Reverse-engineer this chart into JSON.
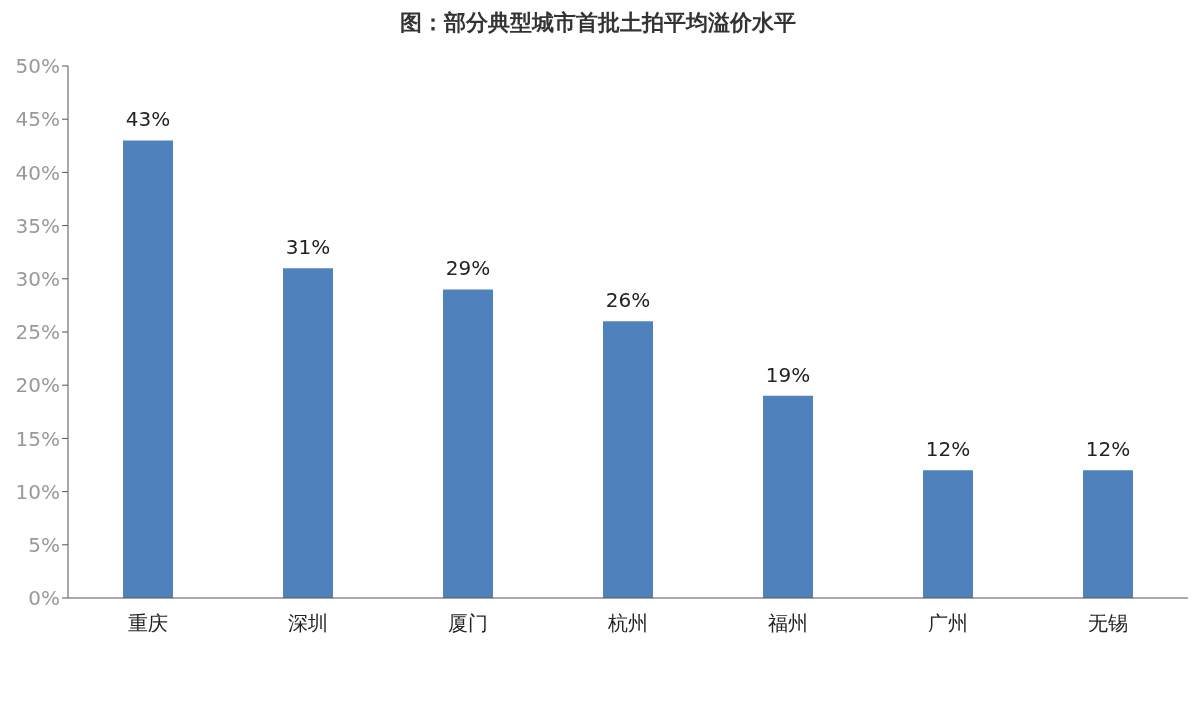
{
  "chart_data": {
    "type": "bar",
    "title": "图：部分典型城市首批土拍平均溢价水平",
    "categories": [
      "重庆",
      "深圳",
      "厦门",
      "杭州",
      "福州",
      "广州",
      "无锡"
    ],
    "values": [
      43,
      31,
      29,
      26,
      19,
      12,
      12
    ],
    "value_labels": [
      "43%",
      "31%",
      "29%",
      "26%",
      "19%",
      "12%",
      "12%"
    ],
    "color": "#4f81bd",
    "ylim": [
      0,
      50
    ],
    "yticks": [
      {
        "value": 0,
        "label": "0%"
      },
      {
        "value": 5,
        "label": "5%"
      },
      {
        "value": 10,
        "label": "10%"
      },
      {
        "value": 15,
        "label": "15%"
      },
      {
        "value": 20,
        "label": "20%"
      },
      {
        "value": 25,
        "label": "25%"
      },
      {
        "value": 30,
        "label": "30%"
      },
      {
        "value": 35,
        "label": "35%"
      },
      {
        "value": 40,
        "label": "40%"
      },
      {
        "value": 45,
        "label": "45%"
      },
      {
        "value": 50,
        "label": "50%"
      }
    ],
    "grid": false
  }
}
